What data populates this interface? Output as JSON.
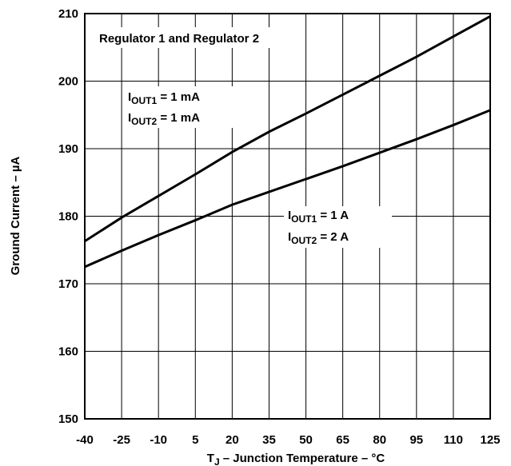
{
  "chart_data": {
    "type": "line",
    "xlabel": {
      "base": "T",
      "sub": "J",
      "rest": " – Junction Temperature – °C"
    },
    "ylabel": "Ground Current – µA",
    "x": [
      -40,
      -25,
      -10,
      5,
      20,
      35,
      50,
      65,
      80,
      95,
      110,
      125
    ],
    "xlim": [
      -40,
      125
    ],
    "xticks": [
      -40,
      -25,
      -10,
      5,
      20,
      35,
      50,
      65,
      80,
      95,
      110,
      125
    ],
    "ylim": [
      150,
      210
    ],
    "yticks": [
      150,
      160,
      170,
      180,
      190,
      200,
      210
    ],
    "grid": true,
    "series": [
      {
        "color": "#000000",
        "values": [
          176.3,
          179.8,
          183,
          186.2,
          189.5,
          192.5,
          195.2,
          198,
          200.8,
          203.6,
          206.6,
          209.6
        ]
      },
      {
        "color": "#000000",
        "values": [
          172.5,
          174.9,
          177.2,
          179.4,
          181.7,
          183.6,
          185.5,
          187.4,
          189.4,
          191.4,
          193.5,
          195.7
        ]
      }
    ],
    "annotations": [
      {
        "text": "Regulator 1 and Regulator 2"
      },
      {
        "lines": [
          {
            "base": "I",
            "sub": "OUT1",
            "rest": " = 1 mA"
          },
          {
            "base": "I",
            "sub": "OUT2",
            "rest": " = 1 mA"
          }
        ]
      },
      {
        "lines": [
          {
            "base": "I",
            "sub": "OUT1",
            "rest": " = 1 A"
          },
          {
            "base": "I",
            "sub": "OUT2",
            "rest": " = 2 A"
          }
        ]
      }
    ]
  }
}
